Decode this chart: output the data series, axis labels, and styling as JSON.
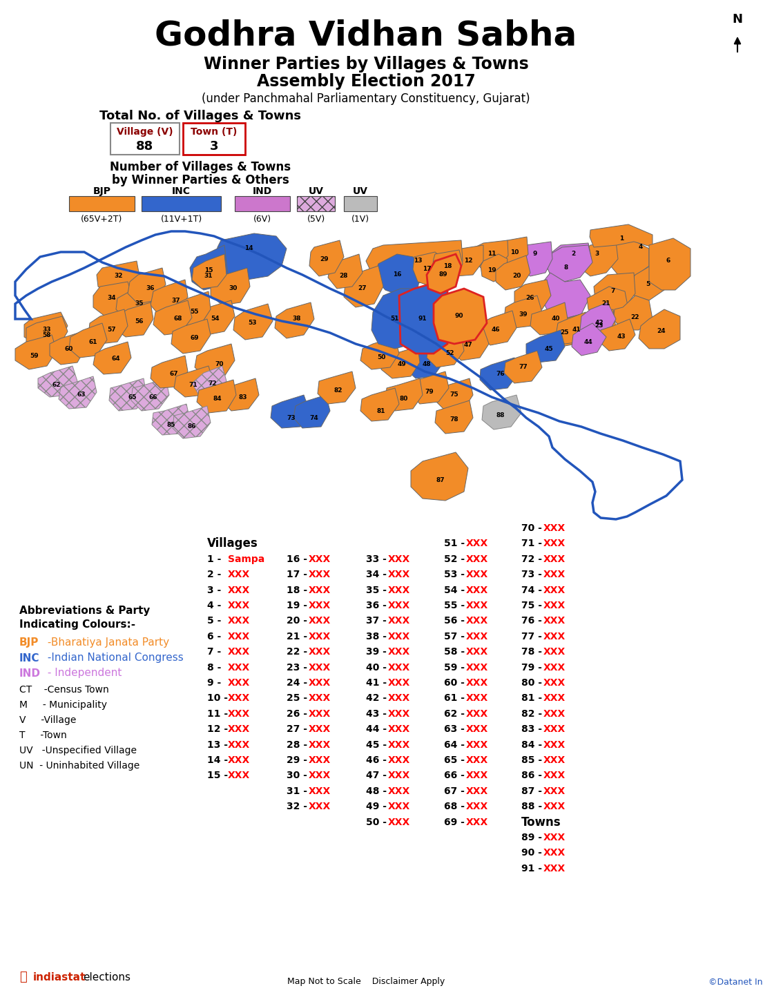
{
  "title": "Godhra Vidhan Sabha",
  "subtitle1": "Winner Parties by Villages & Towns",
  "subtitle2": "Assembly Election 2017",
  "subtitle3": "(under Panchmahal Parliamentary Constituency, Gujarat)",
  "total_label": "Total No. of Villages & Towns",
  "village_count": "88",
  "town_count": "3",
  "village_label": "Village (V)",
  "town_label": "Town (T)",
  "bjp_color": "#F28C28",
  "inc_color": "#3366CC",
  "ind_color": "#CC77DD",
  "uv_color": "#DDAADD",
  "uv_hatch_color": "#CCAACC",
  "gray_color": "#BBBBBB",
  "border_color": "#2255BB",
  "town_border_color": "#DD2222",
  "note": "Map Not to Scale    Disclaimer Apply",
  "copyright": "©Datanet India"
}
